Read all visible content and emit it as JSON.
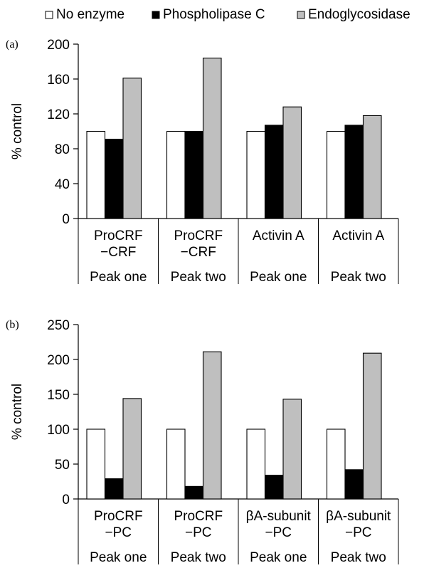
{
  "legend": {
    "items": [
      {
        "label": "No enzyme",
        "color": "#ffffff"
      },
      {
        "label": "Phospholipase C",
        "color": "#000000"
      },
      {
        "label": "Endoglycosidase",
        "color": "#bfbfbf"
      }
    ],
    "placement": "top"
  },
  "chart_data": [
    {
      "type": "bar",
      "panel_label": "(a)",
      "ylabel": "% control",
      "ylim": [
        0,
        200
      ],
      "yticks": [
        0,
        40,
        80,
        120,
        160,
        200
      ],
      "categories": [
        {
          "lines": [
            "ProCRF",
            "−CRF"
          ],
          "peak": "Peak one"
        },
        {
          "lines": [
            "ProCRF",
            "−CRF"
          ],
          "peak": "Peak two"
        },
        {
          "lines": [
            "Activin A"
          ],
          "peak": "Peak one"
        },
        {
          "lines": [
            "Activin A"
          ],
          "peak": "Peak two"
        }
      ],
      "series": [
        {
          "name": "No enzyme",
          "color": "#ffffff",
          "values": [
            100,
            100,
            100,
            100
          ]
        },
        {
          "name": "Phospholipase C",
          "color": "#000000",
          "values": [
            91,
            100,
            107,
            107
          ]
        },
        {
          "name": "Endoglycosidase",
          "color": "#bfbfbf",
          "values": [
            161,
            184,
            128,
            118
          ]
        }
      ],
      "grid": false
    },
    {
      "type": "bar",
      "panel_label": "(b)",
      "ylabel": "% control",
      "ylim": [
        0,
        250
      ],
      "yticks": [
        0,
        50,
        100,
        150,
        200,
        250
      ],
      "categories": [
        {
          "lines": [
            "ProCRF",
            "−PC"
          ],
          "peak": "Peak one"
        },
        {
          "lines": [
            "ProCRF",
            "−PC"
          ],
          "peak": "Peak two"
        },
        {
          "lines": [
            "βA-subunit",
            "−PC"
          ],
          "peak": "Peak one"
        },
        {
          "lines": [
            "βA-subunit",
            "−PC"
          ],
          "peak": "Peak two"
        }
      ],
      "series": [
        {
          "name": "No enzyme",
          "color": "#ffffff",
          "values": [
            100,
            100,
            100,
            100
          ]
        },
        {
          "name": "Phospholipase C",
          "color": "#000000",
          "values": [
            29,
            18,
            34,
            42
          ]
        },
        {
          "name": "Endoglycosidase",
          "color": "#bfbfbf",
          "values": [
            144,
            211,
            143,
            209
          ]
        }
      ],
      "grid": false
    }
  ]
}
